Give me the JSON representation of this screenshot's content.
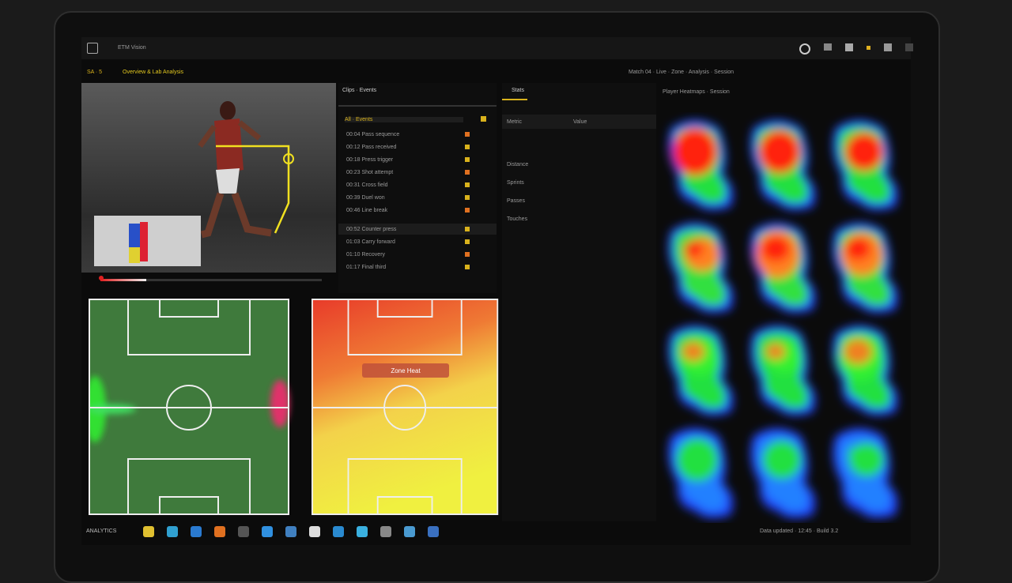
{
  "header": {
    "app": "ETM Vision",
    "tab": "Overview & Lab Analysis",
    "tab_id": "SA · 5",
    "status": "Match 04 · Live · Zone · Analysis · Session"
  },
  "list": {
    "title": "Clips · Events",
    "filter": "All · Events",
    "rows": [
      "00:04 Pass sequence",
      "00:12 Pass received",
      "00:18 Press trigger",
      "00:23 Shot attempt",
      "00:31 Cross field",
      "00:39 Duel won",
      "00:46 Line break",
      "00:52 Counter press",
      "01:03 Carry forward",
      "01:10 Recovery",
      "01:17 Final third"
    ]
  },
  "middle": {
    "tab": "Stats",
    "cols": [
      "Metric",
      "Value"
    ],
    "rows": [
      "Distance",
      "Sprints",
      "Passes",
      "Touches"
    ]
  },
  "heat": {
    "title": "Player Heatmaps · Session"
  },
  "pitch": {
    "label": "Zone Heat"
  },
  "taskbar": {
    "label": "ANALYTICS",
    "footer": "Data updated · 12:45 · Build 3.2"
  }
}
